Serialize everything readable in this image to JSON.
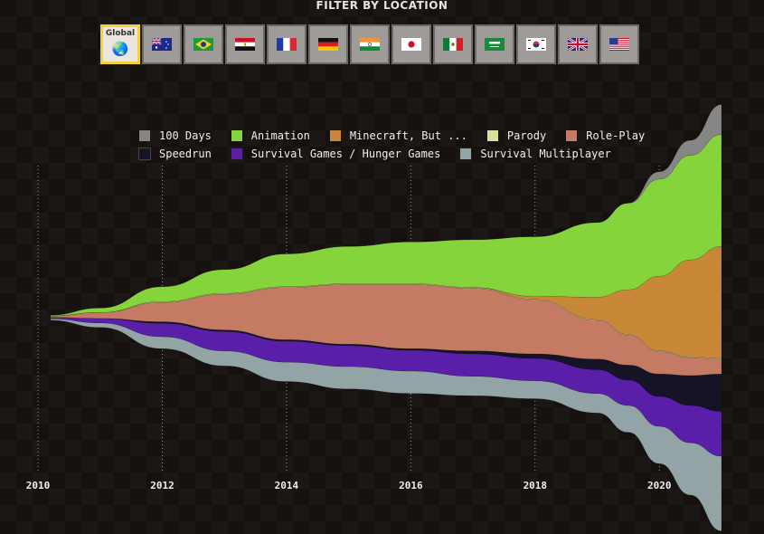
{
  "filter": {
    "title": "FILTER BY LOCATION",
    "global_label": "Global",
    "locations": [
      {
        "name": "global",
        "selected": true
      },
      {
        "name": "australia",
        "selected": false
      },
      {
        "name": "brazil",
        "selected": false
      },
      {
        "name": "egypt",
        "selected": false
      },
      {
        "name": "france",
        "selected": false
      },
      {
        "name": "germany",
        "selected": false
      },
      {
        "name": "india",
        "selected": false
      },
      {
        "name": "japan",
        "selected": false
      },
      {
        "name": "mexico",
        "selected": false
      },
      {
        "name": "saudi-arabia",
        "selected": false
      },
      {
        "name": "south-korea",
        "selected": false
      },
      {
        "name": "united-kingdom",
        "selected": false
      },
      {
        "name": "united-states",
        "selected": false
      }
    ]
  },
  "chart_data": {
    "type": "area",
    "layout": "streamgraph",
    "grid": "vertical dotted",
    "x": [
      2010.2,
      2011,
      2012,
      2013,
      2014,
      2015,
      2016,
      2017,
      2018,
      2019,
      2019.5,
      2020,
      2020.5,
      2021
    ],
    "xlim": [
      2010,
      2021
    ],
    "xticks": [
      "2010",
      "2012",
      "2014",
      "2016",
      "2018",
      "2020"
    ],
    "legend_rows": [
      [
        "100 Days",
        "Animation",
        "Minecraft, But ...",
        "Parody",
        "Role-Play"
      ],
      [
        "Speedrun",
        "Survival Games / Hunger Games",
        "Survival Multiplayer"
      ]
    ],
    "series": [
      {
        "name": "Survival Multiplayer",
        "color": "#93a4a6",
        "values": [
          0.1,
          0.3,
          0.8,
          1,
          1.3,
          1.5,
          1.5,
          1.3,
          1.2,
          1.3,
          1.8,
          2.5,
          3.5,
          5
        ]
      },
      {
        "name": "Survival Games / Hunger Games",
        "color": "#5a1fa8",
        "values": [
          0.1,
          0.3,
          0.9,
          1.3,
          1.4,
          1.4,
          1.4,
          1.5,
          1.5,
          1.6,
          1.7,
          2,
          2.5,
          3
        ]
      },
      {
        "name": "Speedrun",
        "color": "#141426",
        "values": [
          0,
          0,
          0.1,
          0.1,
          0.1,
          0.1,
          0.1,
          0.2,
          0.3,
          0.7,
          1,
          1.5,
          2,
          2.5
        ]
      },
      {
        "name": "Role-Play",
        "color": "#c57a63",
        "values": [
          0.1,
          0.4,
          1.3,
          2.4,
          3.5,
          4,
          4.3,
          4.2,
          3.6,
          2.6,
          2,
          1.5,
          1.2,
          1
        ],
        "label": "Role-Play"
      },
      {
        "name": "Parody",
        "color": "#d9df9d",
        "values": [
          0,
          0,
          0.05,
          0.05,
          0.05,
          0.05,
          0.05,
          0.05,
          0.05,
          0.05,
          0.05,
          0.05,
          0.05,
          0.05
        ]
      },
      {
        "name": "Minecraft, But ...",
        "color": "#c98837",
        "values": [
          0,
          0,
          0,
          0,
          0,
          0,
          0,
          0,
          0.2,
          1.5,
          3,
          5,
          6.5,
          7.5
        ]
      },
      {
        "name": "Animation",
        "color": "#85d43b",
        "values": [
          0.05,
          0.3,
          1,
          1.6,
          2.2,
          2.5,
          2.8,
          3.2,
          4,
          5,
          5.8,
          6.5,
          7,
          7.5
        ]
      },
      {
        "name": "100 Days",
        "color": "#868686",
        "values": [
          0,
          0,
          0,
          0,
          0,
          0,
          0,
          0,
          0,
          0,
          0,
          0.5,
          1,
          2
        ]
      }
    ]
  }
}
